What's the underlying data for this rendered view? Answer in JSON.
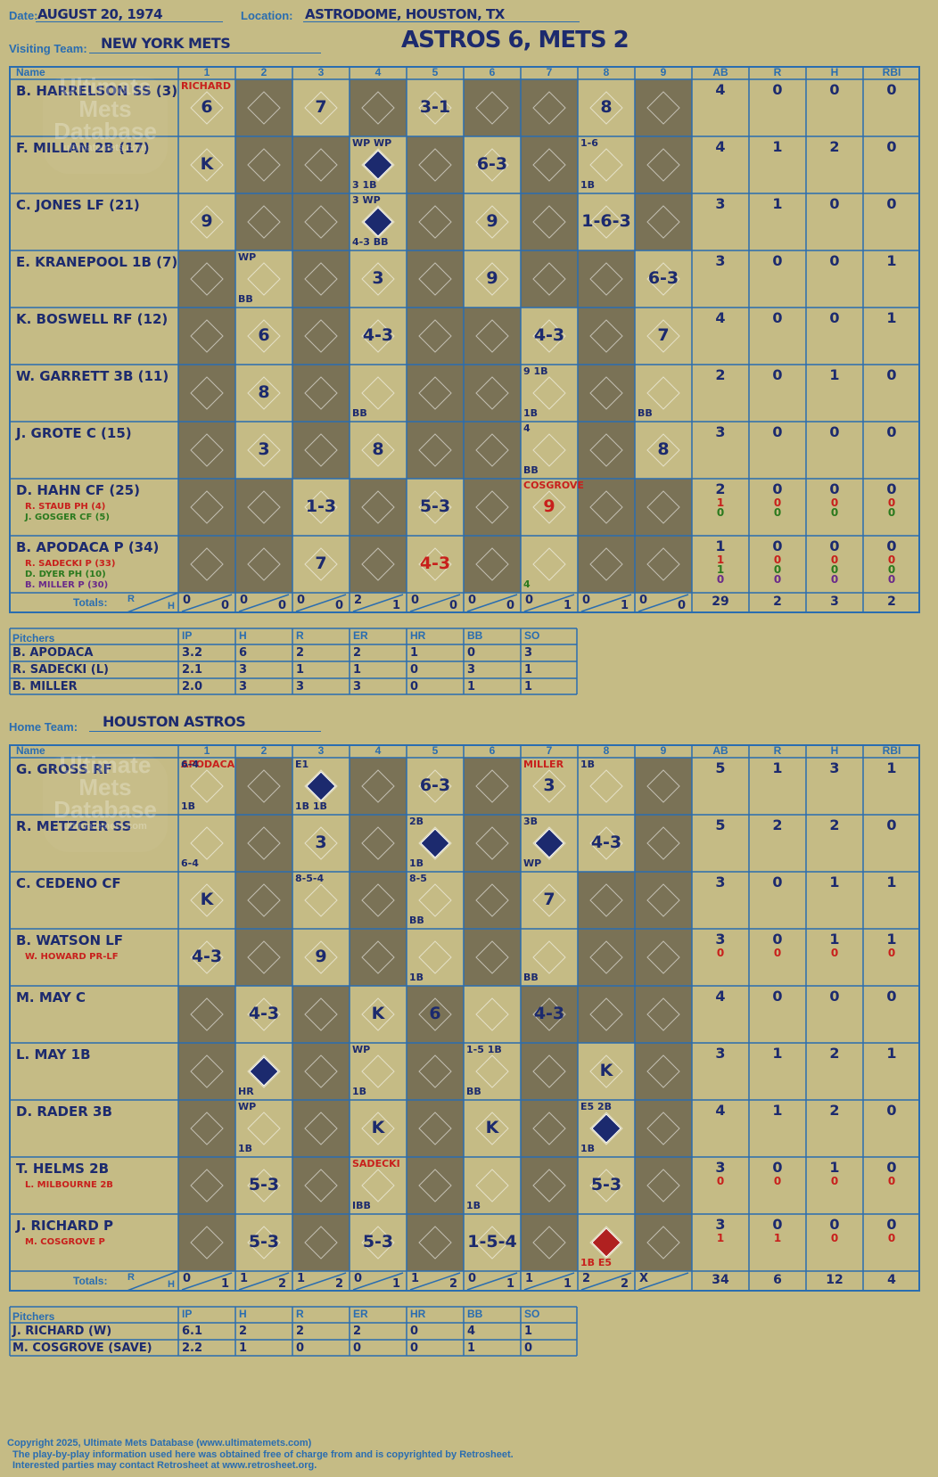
{
  "header": {
    "date_label": "Date:",
    "date": "AUGUST 20, 1974",
    "location_label": "Location:",
    "location": "ASTRODOME, HOUSTON, TX",
    "visiting_label": "Visiting Team:",
    "visiting_team": "NEW YORK METS",
    "home_label": "Home Team:",
    "home_team": "HOUSTON ASTROS",
    "game_title": "ASTROS 6, METS 2"
  },
  "watermark": {
    "line1": "Ultimate",
    "line2": "Mets",
    "line3": "Database",
    "line4": "ultimatemets.com"
  },
  "columns": {
    "name": "Name",
    "innings": [
      "1",
      "2",
      "3",
      "4",
      "5",
      "6",
      "7",
      "8",
      "9"
    ],
    "stats": [
      "AB",
      "R",
      "H",
      "RBI"
    ],
    "totals_label": "Totals:",
    "r_label": "R",
    "h_label": "H"
  },
  "colors": {
    "accent": "#2a6db0",
    "ink": "#1c2a6e",
    "red": "#c8201c",
    "green": "#2b7a1e",
    "dark_cell": "#7a7256",
    "background": "#c5bb85"
  },
  "visitors": {
    "dark_cells": [
      [
        0,
        1
      ],
      [
        0,
        3
      ],
      [
        0,
        5
      ],
      [
        0,
        6
      ],
      [
        0,
        8
      ],
      [
        1,
        1
      ],
      [
        1,
        2
      ],
      [
        1,
        4
      ],
      [
        1,
        6
      ],
      [
        1,
        8
      ],
      [
        2,
        1
      ],
      [
        2,
        2
      ],
      [
        2,
        4
      ],
      [
        2,
        6
      ],
      [
        2,
        8
      ],
      [
        3,
        0
      ],
      [
        3,
        2
      ],
      [
        3,
        4
      ],
      [
        3,
        6
      ],
      [
        3,
        7
      ],
      [
        4,
        0
      ],
      [
        4,
        2
      ],
      [
        4,
        4
      ],
      [
        4,
        5
      ],
      [
        4,
        7
      ],
      [
        5,
        0
      ],
      [
        5,
        2
      ],
      [
        5,
        4
      ],
      [
        5,
        5
      ],
      [
        5,
        7
      ],
      [
        6,
        0
      ],
      [
        6,
        2
      ],
      [
        6,
        4
      ],
      [
        6,
        5
      ],
      [
        6,
        7
      ],
      [
        7,
        0
      ],
      [
        7,
        1
      ],
      [
        7,
        3
      ],
      [
        7,
        5
      ],
      [
        7,
        7
      ],
      [
        7,
        8
      ],
      [
        8,
        0
      ],
      [
        8,
        1
      ],
      [
        8,
        3
      ],
      [
        8,
        5
      ],
      [
        8,
        7
      ],
      [
        8,
        8
      ]
    ],
    "rows": [
      {
        "name": "B. HARRELSON SS (3)",
        "subs": [],
        "ab": "4",
        "r": "0",
        "h": "0",
        "rbi": "0",
        "sub_stats": [],
        "plays": [
          {
            "c": 0,
            "t": "6"
          },
          {
            "c": 2,
            "t": "7"
          },
          {
            "c": 4,
            "t": "3-1"
          },
          {
            "c": 7,
            "t": "8"
          }
        ]
      },
      {
        "name": "F. MILLAN 2B (17)",
        "subs": [],
        "ab": "4",
        "r": "1",
        "h": "2",
        "rbi": "0",
        "sub_stats": [],
        "plays": [
          {
            "c": 0,
            "t": "K"
          },
          {
            "c": 5,
            "t": "6-3"
          }
        ]
      },
      {
        "name": "C. JONES LF (21)",
        "subs": [],
        "ab": "3",
        "r": "1",
        "h": "0",
        "rbi": "0",
        "sub_stats": [],
        "plays": [
          {
            "c": 0,
            "t": "9"
          },
          {
            "c": 5,
            "t": "9"
          },
          {
            "c": 7,
            "t": "1-6-3"
          }
        ]
      },
      {
        "name": "E. KRANEPOOL 1B (7)",
        "subs": [],
        "ab": "3",
        "r": "0",
        "h": "0",
        "rbi": "1",
        "sub_stats": [],
        "plays": [
          {
            "c": 3,
            "t": "3"
          },
          {
            "c": 5,
            "t": "9"
          },
          {
            "c": 8,
            "t": "6-3"
          }
        ]
      },
      {
        "name": "K. BOSWELL RF (12)",
        "subs": [],
        "ab": "4",
        "r": "0",
        "h": "0",
        "rbi": "1",
        "sub_stats": [],
        "plays": [
          {
            "c": 1,
            "t": "6"
          },
          {
            "c": 3,
            "t": "4-3"
          },
          {
            "c": 6,
            "t": "4-3"
          },
          {
            "c": 8,
            "t": "7"
          }
        ]
      },
      {
        "name": "W. GARRETT 3B (11)",
        "subs": [],
        "ab": "2",
        "r": "0",
        "h": "1",
        "rbi": "0",
        "sub_stats": [],
        "plays": [
          {
            "c": 1,
            "t": "8"
          }
        ]
      },
      {
        "name": "J. GROTE C (15)",
        "subs": [],
        "ab": "3",
        "r": "0",
        "h": "0",
        "rbi": "0",
        "sub_stats": [],
        "plays": [
          {
            "c": 1,
            "t": "3"
          },
          {
            "c": 3,
            "t": "8"
          },
          {
            "c": 8,
            "t": "8"
          }
        ]
      },
      {
        "name": "D. HAHN CF (25)",
        "subs": [
          {
            "t": "R. STAUB PH (4)",
            "col": "red"
          },
          {
            "t": "J. GOSGER CF (5)",
            "col": "green"
          }
        ],
        "ab": "2",
        "r": "0",
        "h": "0",
        "rbi": "0",
        "sub_stats": [
          {
            "col": "red",
            "ab": "1",
            "r": "0",
            "h": "0",
            "rbi": "0"
          },
          {
            "col": "green",
            "ab": "0",
            "r": "0",
            "h": "0",
            "rbi": "0"
          }
        ],
        "plays": [
          {
            "c": 2,
            "t": "1-3"
          },
          {
            "c": 4,
            "t": "5-3"
          },
          {
            "c": 6,
            "t": "9",
            "color": "red"
          }
        ]
      },
      {
        "name": "B. APODACA P (34)",
        "subs": [
          {
            "t": "R. SADECKI P (33)",
            "col": "red"
          },
          {
            "t": "D. DYER PH (10)",
            "col": "green"
          },
          {
            "t": "B. MILLER P (30)",
            "col": "purple"
          }
        ],
        "ab": "1",
        "r": "0",
        "h": "0",
        "rbi": "0",
        "sub_stats": [
          {
            "col": "red",
            "ab": "1",
            "r": "0",
            "h": "0",
            "rbi": "0"
          },
          {
            "col": "green",
            "ab": "1",
            "r": "0",
            "h": "0",
            "rbi": "0"
          },
          {
            "col": "purple",
            "ab": "0",
            "r": "0",
            "h": "0",
            "rbi": "0"
          }
        ],
        "plays": [
          {
            "c": 2,
            "t": "7"
          },
          {
            "c": 4,
            "t": "4-3",
            "color": "red"
          }
        ]
      }
    ],
    "notes": [
      {
        "r": 0,
        "c": 0,
        "t": "RICHARD",
        "color": "red"
      },
      {
        "r": 7,
        "c": 6,
        "t": "COSGROVE",
        "color": "red"
      },
      {
        "r": 1,
        "c": 3,
        "t": "WP WP"
      },
      {
        "r": 1,
        "c": 3,
        "t": "3    1B",
        "b": true
      },
      {
        "r": 1,
        "c": 7,
        "t": "1-6"
      },
      {
        "r": 1,
        "c": 7,
        "t": "1B",
        "b": true
      },
      {
        "r": 2,
        "c": 3,
        "t": "3    WP"
      },
      {
        "r": 2,
        "c": 3,
        "t": "4-3  BB",
        "b": true
      },
      {
        "r": 3,
        "c": 1,
        "t": "WP"
      },
      {
        "r": 3,
        "c": 1,
        "t": "BB",
        "b": true
      },
      {
        "r": 5,
        "c": 3,
        "t": "BB",
        "b": true
      },
      {
        "r": 5,
        "c": 6,
        "t": "9   1B"
      },
      {
        "r": 5,
        "c": 6,
        "t": "1B",
        "b": true
      },
      {
        "r": 5,
        "c": 8,
        "t": "BB",
        "b": true
      },
      {
        "r": 6,
        "c": 6,
        "t": "4"
      },
      {
        "r": 6,
        "c": 6,
        "t": "BB",
        "b": true
      },
      {
        "r": 8,
        "c": 6,
        "t": "4",
        "b": true,
        "color": "green"
      }
    ],
    "runs_scored": [
      [
        1,
        3
      ],
      [
        2,
        3
      ]
    ],
    "totals": [
      [
        "0",
        "0"
      ],
      [
        "0",
        "0"
      ],
      [
        "0",
        "0"
      ],
      [
        "2",
        "1"
      ],
      [
        "0",
        "0"
      ],
      [
        "0",
        "0"
      ],
      [
        "0",
        "1"
      ],
      [
        "0",
        "1"
      ],
      [
        "0",
        "0"
      ]
    ],
    "totals_stats": {
      "ab": "29",
      "r": "2",
      "h": "3",
      "rbi": "2"
    }
  },
  "home": {
    "dark_cells": [
      [
        0,
        1
      ],
      [
        0,
        3
      ],
      [
        0,
        5
      ],
      [
        0,
        8
      ],
      [
        1,
        1
      ],
      [
        1,
        3
      ],
      [
        1,
        5
      ],
      [
        1,
        8
      ],
      [
        2,
        1
      ],
      [
        2,
        3
      ],
      [
        2,
        5
      ],
      [
        2,
        7
      ],
      [
        2,
        8
      ],
      [
        3,
        1
      ],
      [
        3,
        3
      ],
      [
        3,
        5
      ],
      [
        3,
        7
      ],
      [
        3,
        8
      ],
      [
        4,
        0
      ],
      [
        4,
        2
      ],
      [
        4,
        4
      ],
      [
        4,
        6
      ],
      [
        4,
        7
      ],
      [
        4,
        8
      ],
      [
        5,
        0
      ],
      [
        5,
        2
      ],
      [
        5,
        4
      ],
      [
        5,
        6
      ],
      [
        5,
        8
      ],
      [
        6,
        0
      ],
      [
        6,
        2
      ],
      [
        6,
        4
      ],
      [
        6,
        6
      ],
      [
        6,
        8
      ],
      [
        7,
        0
      ],
      [
        7,
        2
      ],
      [
        7,
        4
      ],
      [
        7,
        6
      ],
      [
        7,
        8
      ],
      [
        8,
        0
      ],
      [
        8,
        2
      ],
      [
        8,
        4
      ],
      [
        8,
        6
      ],
      [
        8,
        8
      ]
    ],
    "rows": [
      {
        "name": "G. GROSS RF",
        "subs": [],
        "ab": "5",
        "r": "1",
        "h": "3",
        "rbi": "1",
        "sub_stats": [],
        "plays": [
          {
            "c": 4,
            "t": "6-3"
          },
          {
            "c": 6,
            "t": "3"
          }
        ]
      },
      {
        "name": "R. METZGER SS",
        "subs": [],
        "ab": "5",
        "r": "2",
        "h": "2",
        "rbi": "0",
        "sub_stats": [],
        "plays": [
          {
            "c": 2,
            "t": "3"
          },
          {
            "c": 7,
            "t": "4-3"
          }
        ]
      },
      {
        "name": "C. CEDENO CF",
        "subs": [],
        "ab": "3",
        "r": "0",
        "h": "1",
        "rbi": "1",
        "sub_stats": [],
        "plays": [
          {
            "c": 0,
            "t": "K"
          },
          {
            "c": 6,
            "t": "7"
          }
        ]
      },
      {
        "name": "B. WATSON LF",
        "subs": [
          {
            "t": "W. HOWARD PR-LF",
            "col": "red"
          }
        ],
        "ab": "3",
        "r": "0",
        "h": "1",
        "rbi": "1",
        "sub_stats": [
          {
            "col": "red",
            "ab": "0",
            "r": "0",
            "h": "0",
            "rbi": "0"
          }
        ],
        "plays": [
          {
            "c": 0,
            "t": "4-3"
          },
          {
            "c": 2,
            "t": "9"
          }
        ]
      },
      {
        "name": "M. MAY C",
        "subs": [],
        "ab": "4",
        "r": "0",
        "h": "0",
        "rbi": "0",
        "sub_stats": [],
        "plays": [
          {
            "c": 1,
            "t": "4-3"
          },
          {
            "c": 3,
            "t": "K"
          },
          {
            "c": 4,
            "t": "6"
          },
          {
            "c": 6,
            "t": "4-3"
          }
        ]
      },
      {
        "name": "L. MAY 1B",
        "subs": [],
        "ab": "3",
        "r": "1",
        "h": "2",
        "rbi": "1",
        "sub_stats": [],
        "plays": [
          {
            "c": 7,
            "t": "K"
          }
        ]
      },
      {
        "name": "D. RADER 3B",
        "subs": [],
        "ab": "4",
        "r": "1",
        "h": "2",
        "rbi": "0",
        "sub_stats": [],
        "plays": [
          {
            "c": 3,
            "t": "K"
          },
          {
            "c": 5,
            "t": "K"
          }
        ]
      },
      {
        "name": "T. HELMS 2B",
        "subs": [
          {
            "t": "L. MILBOURNE 2B",
            "col": "red"
          }
        ],
        "ab": "3",
        "r": "0",
        "h": "1",
        "rbi": "0",
        "sub_stats": [
          {
            "col": "red",
            "ab": "0",
            "r": "0",
            "h": "0",
            "rbi": "0"
          }
        ],
        "plays": [
          {
            "c": 1,
            "t": "5-3"
          },
          {
            "c": 7,
            "t": "5-3"
          }
        ]
      },
      {
        "name": "J. RICHARD P",
        "subs": [
          {
            "t": "M. COSGROVE P",
            "col": "red"
          }
        ],
        "ab": "3",
        "r": "0",
        "h": "0",
        "rbi": "0",
        "sub_stats": [
          {
            "col": "red",
            "ab": "1",
            "r": "1",
            "h": "0",
            "rbi": "0"
          }
        ],
        "plays": [
          {
            "c": 1,
            "t": "5-3"
          },
          {
            "c": 3,
            "t": "5-3"
          },
          {
            "c": 5,
            "t": "1-5-4"
          }
        ]
      }
    ],
    "notes": [
      {
        "r": 0,
        "c": 0,
        "t": "APODACA",
        "color": "red"
      },
      {
        "r": 0,
        "c": 0,
        "t": "6-4"
      },
      {
        "r": 0,
        "c": 0,
        "t": "1B",
        "b": true
      },
      {
        "r": 0,
        "c": 2,
        "t": "E1"
      },
      {
        "r": 0,
        "c": 2,
        "t": "1B    1B",
        "b": true
      },
      {
        "r": 0,
        "c": 6,
        "t": "MILLER",
        "color": "red"
      },
      {
        "r": 0,
        "c": 7,
        "t": "1B"
      },
      {
        "r": 1,
        "c": 0,
        "t": "6-4",
        "b": true
      },
      {
        "r": 1,
        "c": 4,
        "t": "2B"
      },
      {
        "r": 1,
        "c": 4,
        "t": "1B",
        "b": true
      },
      {
        "r": 1,
        "c": 6,
        "t": "3B"
      },
      {
        "r": 1,
        "c": 6,
        "t": "WP",
        "b": true
      },
      {
        "r": 2,
        "c": 2,
        "t": "8-5-4"
      },
      {
        "r": 2,
        "c": 4,
        "t": "8-5"
      },
      {
        "r": 2,
        "c": 4,
        "t": "BB",
        "b": true
      },
      {
        "r": 3,
        "c": 4,
        "t": "1B",
        "b": true
      },
      {
        "r": 3,
        "c": 6,
        "t": "BB",
        "b": true
      },
      {
        "r": 5,
        "c": 1,
        "t": "HR",
        "b": true
      },
      {
        "r": 5,
        "c": 3,
        "t": "WP"
      },
      {
        "r": 5,
        "c": 3,
        "t": "1B",
        "b": true
      },
      {
        "r": 5,
        "c": 5,
        "t": "1-5 1B"
      },
      {
        "r": 5,
        "c": 5,
        "t": "BB",
        "b": true
      },
      {
        "r": 6,
        "c": 1,
        "t": "WP"
      },
      {
        "r": 6,
        "c": 1,
        "t": "1B",
        "b": true
      },
      {
        "r": 6,
        "c": 7,
        "t": "E5 2B"
      },
      {
        "r": 6,
        "c": 7,
        "t": "1B",
        "b": true
      },
      {
        "r": 7,
        "c": 3,
        "t": "SADECKI",
        "color": "red"
      },
      {
        "r": 7,
        "c": 3,
        "t": "IBB",
        "b": true
      },
      {
        "r": 7,
        "c": 5,
        "t": "1B",
        "b": true
      },
      {
        "r": 8,
        "c": 7,
        "t": "1B   E5",
        "b": true,
        "color": "red"
      }
    ],
    "runs_scored": [
      [
        0,
        2
      ],
      [
        1,
        4
      ],
      [
        1,
        6
      ],
      [
        5,
        1
      ],
      [
        6,
        7
      ],
      [
        8,
        7
      ]
    ],
    "totals": [
      [
        "0",
        "1"
      ],
      [
        "1",
        "2"
      ],
      [
        "1",
        "2"
      ],
      [
        "0",
        "1"
      ],
      [
        "1",
        "2"
      ],
      [
        "0",
        "1"
      ],
      [
        "1",
        "1"
      ],
      [
        "2",
        "2"
      ],
      [
        "X",
        ""
      ]
    ],
    "totals_stats": {
      "ab": "34",
      "r": "6",
      "h": "12",
      "rbi": "4"
    }
  },
  "pitching_headers": [
    "Pitchers",
    "IP",
    "H",
    "R",
    "ER",
    "HR",
    "BB",
    "SO"
  ],
  "visiting_pitchers": [
    [
      "B. APODACA",
      "3.2",
      "6",
      "2",
      "2",
      "1",
      "0",
      "3"
    ],
    [
      "R. SADECKI (L)",
      "2.1",
      "3",
      "1",
      "1",
      "0",
      "3",
      "1"
    ],
    [
      "B. MILLER",
      "2.0",
      "3",
      "3",
      "3",
      "0",
      "1",
      "1"
    ]
  ],
  "home_pitchers": [
    [
      "J. RICHARD (W)",
      "6.1",
      "2",
      "2",
      "2",
      "0",
      "4",
      "1"
    ],
    [
      "M. COSGROVE (SAVE)",
      "2.2",
      "1",
      "0",
      "0",
      "0",
      "1",
      "0"
    ]
  ],
  "footer": {
    "line1": "Copyright 2025, Ultimate Mets Database (www.ultimatemets.com)",
    "line2": "The play-by-play information used here was obtained free of charge from and is copyrighted by Retrosheet.",
    "line3": "Interested parties may contact Retrosheet at www.retrosheet.org."
  }
}
